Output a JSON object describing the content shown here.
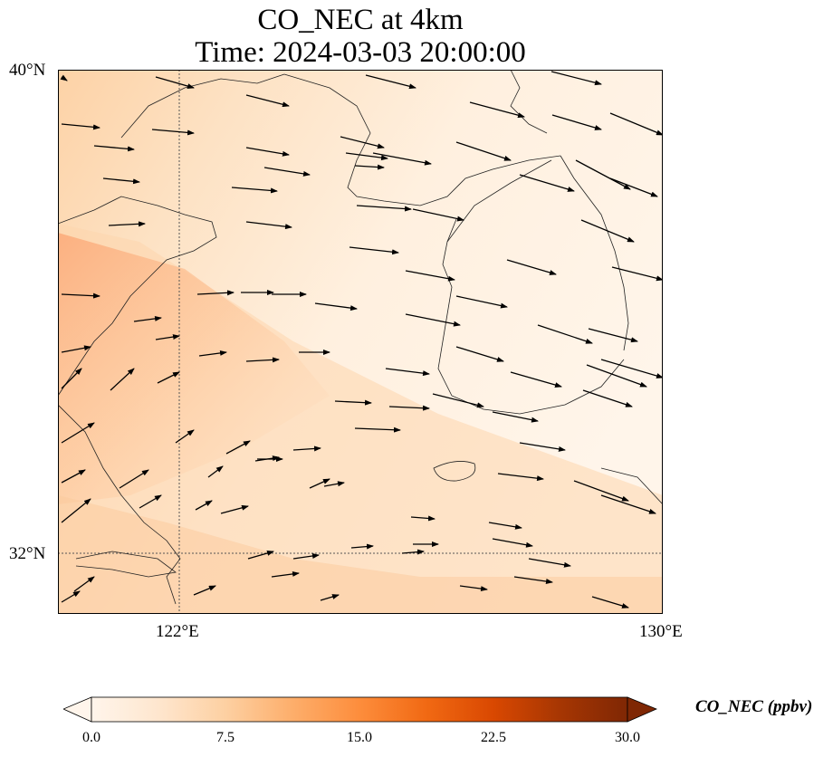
{
  "title": {
    "line1": "CO_NEC at 4km",
    "line2": "Time: 2024-03-03 20:00:00"
  },
  "axes": {
    "lat_labels": [
      "40°N",
      "32°N"
    ],
    "lon_labels": [
      "122°E",
      "130°E"
    ]
  },
  "colorbar": {
    "label": "CO_NEC (ppbv)",
    "ticks": [
      "0.0",
      "7.5",
      "15.0",
      "22.5",
      "30.0"
    ],
    "colors": [
      "#fff5eb",
      "#fee6ce",
      "#fdd0a2",
      "#fdae6b",
      "#fd8d3c",
      "#f16913",
      "#d94801",
      "#a63603",
      "#7f2704"
    ],
    "range": [
      0,
      30
    ],
    "extend": "both"
  },
  "colors": {
    "field_low": "#fff3e4",
    "field_mid": "#fdd9ae",
    "field_high": "#fbb787",
    "coastline": "#222222",
    "gridline": "#555555",
    "wind_arrow": "#000000"
  },
  "wind_vectors_icon": "arrow-icon"
}
